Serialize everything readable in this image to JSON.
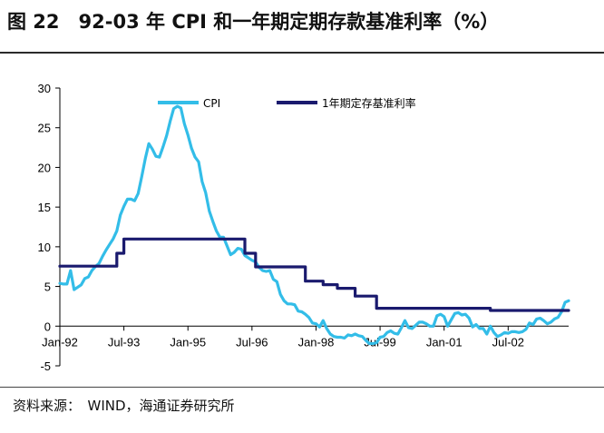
{
  "figure_title": "图 22　92-03 年 CPI 和一年期定期存款基准利率（%）",
  "source_note": "资料来源：　WIND，海通证券研究所",
  "colors": {
    "cpi": "#33bde8",
    "rate": "#1a1a6e",
    "axis": "#000000"
  },
  "chart_data": {
    "type": "line",
    "title": "",
    "xlabel": "",
    "ylabel": "",
    "ylim": [
      -5,
      30
    ],
    "yticks": [
      -5,
      0,
      5,
      10,
      15,
      20,
      25,
      30
    ],
    "x_range": [
      "1992-01",
      "2003-12"
    ],
    "x_tick_labels": [
      "Jan-92",
      "Jul-93",
      "Jan-95",
      "Jul-96",
      "Jan-98",
      "Jul-99",
      "Jan-01",
      "Jul-02"
    ],
    "grid": false,
    "legend_position": "top",
    "series": [
      {
        "name": "CPI",
        "color": "#33bde8",
        "points": [
          [
            "1992-01",
            5.4
          ],
          [
            "1992-02",
            5.3
          ],
          [
            "1992-03",
            5.3
          ],
          [
            "1992-04",
            7.0
          ],
          [
            "1992-05",
            4.6
          ],
          [
            "1992-06",
            4.9
          ],
          [
            "1992-07",
            5.2
          ],
          [
            "1992-08",
            6.0
          ],
          [
            "1992-09",
            6.2
          ],
          [
            "1992-10",
            7.0
          ],
          [
            "1992-11",
            7.5
          ],
          [
            "1992-12",
            7.9
          ],
          [
            "1993-01",
            8.8
          ],
          [
            "1993-02",
            9.6
          ],
          [
            "1993-03",
            10.3
          ],
          [
            "1993-04",
            11.0
          ],
          [
            "1993-05",
            12.0
          ],
          [
            "1993-06",
            14.0
          ],
          [
            "1993-07",
            15.1
          ],
          [
            "1993-08",
            16.0
          ],
          [
            "1993-09",
            16.0
          ],
          [
            "1993-10",
            15.8
          ],
          [
            "1993-11",
            16.7
          ],
          [
            "1993-12",
            18.8
          ],
          [
            "1994-01",
            21.1
          ],
          [
            "1994-02",
            23.0
          ],
          [
            "1994-03",
            22.3
          ],
          [
            "1994-04",
            21.4
          ],
          [
            "1994-05",
            21.3
          ],
          [
            "1994-06",
            22.6
          ],
          [
            "1994-07",
            24.0
          ],
          [
            "1994-08",
            25.8
          ],
          [
            "1994-09",
            27.4
          ],
          [
            "1994-10",
            27.7
          ],
          [
            "1994-11",
            27.5
          ],
          [
            "1994-12",
            25.5
          ],
          [
            "1995-01",
            24.1
          ],
          [
            "1995-02",
            22.4
          ],
          [
            "1995-03",
            21.3
          ],
          [
            "1995-04",
            20.7
          ],
          [
            "1995-05",
            18.2
          ],
          [
            "1995-06",
            16.8
          ],
          [
            "1995-07",
            14.5
          ],
          [
            "1995-08",
            13.2
          ],
          [
            "1995-09",
            12.0
          ],
          [
            "1995-10",
            11.2
          ],
          [
            "1995-11",
            11.2
          ],
          [
            "1995-12",
            10.1
          ],
          [
            "1996-01",
            9.0
          ],
          [
            "1996-02",
            9.3
          ],
          [
            "1996-03",
            9.8
          ],
          [
            "1996-04",
            9.7
          ],
          [
            "1996-05",
            8.9
          ],
          [
            "1996-06",
            8.6
          ],
          [
            "1996-07",
            8.3
          ],
          [
            "1996-08",
            8.1
          ],
          [
            "1996-09",
            7.4
          ],
          [
            "1996-10",
            7.0
          ],
          [
            "1996-11",
            6.9
          ],
          [
            "1996-12",
            7.0
          ],
          [
            "1997-01",
            5.9
          ],
          [
            "1997-02",
            5.6
          ],
          [
            "1997-03",
            4.0
          ],
          [
            "1997-04",
            3.2
          ],
          [
            "1997-05",
            2.8
          ],
          [
            "1997-06",
            2.8
          ],
          [
            "1997-07",
            2.7
          ],
          [
            "1997-08",
            1.9
          ],
          [
            "1997-09",
            1.8
          ],
          [
            "1997-10",
            1.5
          ],
          [
            "1997-11",
            1.1
          ],
          [
            "1997-12",
            0.4
          ],
          [
            "1998-01",
            0.3
          ],
          [
            "1998-02",
            -0.1
          ],
          [
            "1998-03",
            0.7
          ],
          [
            "1998-04",
            -0.3
          ],
          [
            "1998-05",
            -1.0
          ],
          [
            "1998-06",
            -1.3
          ],
          [
            "1998-07",
            -1.4
          ],
          [
            "1998-08",
            -1.4
          ],
          [
            "1998-09",
            -1.5
          ],
          [
            "1998-10",
            -1.1
          ],
          [
            "1998-11",
            -1.2
          ],
          [
            "1998-12",
            -1.0
          ],
          [
            "1999-01",
            -1.2
          ],
          [
            "1999-02",
            -1.3
          ],
          [
            "1999-03",
            -1.8
          ],
          [
            "1999-04",
            -2.2
          ],
          [
            "1999-05",
            -2.2
          ],
          [
            "1999-06",
            -2.1
          ],
          [
            "1999-07",
            -1.4
          ],
          [
            "1999-08",
            -1.3
          ],
          [
            "1999-09",
            -0.8
          ],
          [
            "1999-10",
            -0.6
          ],
          [
            "1999-11",
            -0.9
          ],
          [
            "1999-12",
            -1.0
          ],
          [
            "2000-01",
            -0.2
          ],
          [
            "2000-02",
            0.7
          ],
          [
            "2000-03",
            -0.2
          ],
          [
            "2000-04",
            -0.3
          ],
          [
            "2000-05",
            0.1
          ],
          [
            "2000-06",
            0.5
          ],
          [
            "2000-07",
            0.5
          ],
          [
            "2000-08",
            0.3
          ],
          [
            "2000-09",
            0.0
          ],
          [
            "2000-10",
            0.0
          ],
          [
            "2000-11",
            1.3
          ],
          [
            "2000-12",
            1.5
          ],
          [
            "2001-01",
            1.2
          ],
          [
            "2001-02",
            0.0
          ],
          [
            "2001-03",
            0.8
          ],
          [
            "2001-04",
            1.6
          ],
          [
            "2001-05",
            1.7
          ],
          [
            "2001-06",
            1.4
          ],
          [
            "2001-07",
            1.5
          ],
          [
            "2001-08",
            1.0
          ],
          [
            "2001-09",
            -0.1
          ],
          [
            "2001-10",
            0.2
          ],
          [
            "2001-11",
            -0.3
          ],
          [
            "2001-12",
            -0.3
          ],
          [
            "2002-01",
            -1.0
          ],
          [
            "2002-02",
            0.0
          ],
          [
            "2002-03",
            -0.8
          ],
          [
            "2002-04",
            -1.3
          ],
          [
            "2002-05",
            -1.1
          ],
          [
            "2002-06",
            -0.8
          ],
          [
            "2002-07",
            -0.9
          ],
          [
            "2002-08",
            -0.7
          ],
          [
            "2002-09",
            -0.7
          ],
          [
            "2002-10",
            -0.8
          ],
          [
            "2002-11",
            -0.7
          ],
          [
            "2002-12",
            -0.4
          ],
          [
            "2003-01",
            0.4
          ],
          [
            "2003-02",
            0.2
          ],
          [
            "2003-03",
            0.9
          ],
          [
            "2003-04",
            1.0
          ],
          [
            "2003-05",
            0.7
          ],
          [
            "2003-06",
            0.3
          ],
          [
            "2003-07",
            0.5
          ],
          [
            "2003-08",
            0.9
          ],
          [
            "2003-09",
            1.1
          ],
          [
            "2003-10",
            1.8
          ],
          [
            "2003-11",
            3.0
          ],
          [
            "2003-12",
            3.2
          ]
        ]
      },
      {
        "name": "1年期定存基准利率",
        "color": "#1a1a6e",
        "points": [
          [
            "1992-01",
            7.56
          ],
          [
            "1993-05",
            7.56
          ],
          [
            "1993-05",
            9.18
          ],
          [
            "1993-07",
            9.18
          ],
          [
            "1993-07",
            10.98
          ],
          [
            "1996-05",
            10.98
          ],
          [
            "1996-05",
            9.18
          ],
          [
            "1996-08",
            9.18
          ],
          [
            "1996-08",
            7.47
          ],
          [
            "1997-10",
            7.47
          ],
          [
            "1997-10",
            5.67
          ],
          [
            "1998-03",
            5.67
          ],
          [
            "1998-03",
            5.22
          ],
          [
            "1998-07",
            5.22
          ],
          [
            "1998-07",
            4.77
          ],
          [
            "1998-12",
            4.77
          ],
          [
            "1998-12",
            3.78
          ],
          [
            "1999-06",
            3.78
          ],
          [
            "1999-06",
            2.25
          ],
          [
            "2002-02",
            2.25
          ],
          [
            "2002-02",
            1.98
          ],
          [
            "2003-12",
            1.98
          ]
        ]
      }
    ]
  }
}
